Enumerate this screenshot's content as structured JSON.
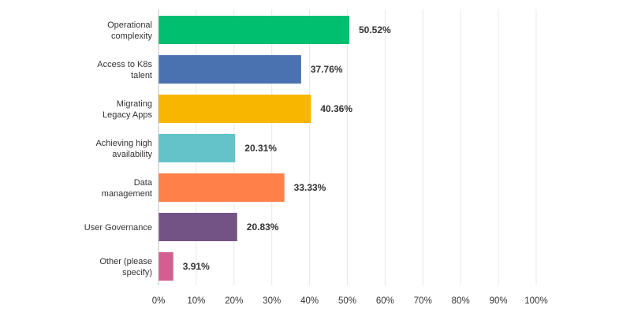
{
  "chart_data": {
    "type": "bar",
    "orientation": "horizontal",
    "title": "",
    "xlabel": "",
    "ylabel": "",
    "xlim": [
      0,
      100
    ],
    "grid": true,
    "categories": [
      [
        "Operational",
        "complexity"
      ],
      [
        "Access to K8s",
        "talent"
      ],
      [
        "Migrating",
        "Legacy Apps"
      ],
      [
        "Achieving high",
        "availability"
      ],
      [
        "Data",
        "management"
      ],
      [
        "User Governance"
      ],
      [
        "Other (please",
        "specify)"
      ]
    ],
    "values": [
      50.52,
      37.76,
      40.36,
      20.31,
      33.33,
      20.83,
      3.91
    ],
    "value_labels": [
      "50.52%",
      "37.76%",
      "40.36%",
      "20.31%",
      "33.33%",
      "20.83%",
      "3.91%"
    ],
    "colors": [
      "#00bf6f",
      "#4a72b0",
      "#f9b600",
      "#63c3c9",
      "#ff8049",
      "#735386",
      "#d25f90"
    ],
    "x_ticks": [
      {
        "value": 0,
        "label": "0%"
      },
      {
        "value": 10,
        "label": "10%"
      },
      {
        "value": 20,
        "label": "20%"
      },
      {
        "value": 30,
        "label": "30%"
      },
      {
        "value": 40,
        "label": "40%"
      },
      {
        "value": 50,
        "label": "50%"
      },
      {
        "value": 60,
        "label": "60%"
      },
      {
        "value": 70,
        "label": "70%"
      },
      {
        "value": 80,
        "label": "80%"
      },
      {
        "value": 90,
        "label": "90%"
      },
      {
        "value": 100,
        "label": "100%"
      }
    ],
    "grid_color": "#e8e8e8",
    "axis_color": "#bdbdbd"
  }
}
